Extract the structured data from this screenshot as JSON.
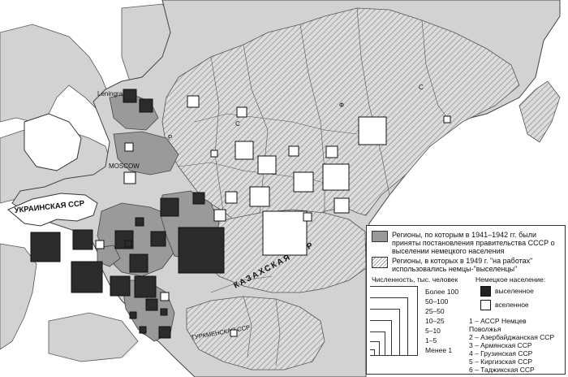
{
  "map_labels": {
    "leningrad": "Leningrad",
    "moscow": "MOSCOW",
    "ukraine": "УКРАИНСКАЯ ССР",
    "kazakh": "КАЗАХСКАЯ ССР",
    "turkmen": "ТУРКМЕНСКАЯ ССР",
    "region_s1": "С",
    "region_s2": "С",
    "region_f": "Ф",
    "region_r": "Р"
  },
  "legend": {
    "deportation_regions": "Регионы, по которым в 1941–1942 гг. были приняты постановления правительства СССР о выселении немецкого населения",
    "labour_regions": "Регионы, в которых в 1949 г. \"на работах\" использовались немцы-\"выселенцы\"",
    "population_heading": "Численность, тыс. человек",
    "german_population_heading": "Немецкое население:",
    "expelled": "выселенное",
    "resettled": "вселенное",
    "size_classes": [
      "Более 100",
      "50–100",
      "25–50",
      "10–25",
      "5–10",
      "1–5",
      "Менее 1"
    ],
    "republics": [
      "1 – АССР Немцев Поволжья",
      "2 – Азербайджанская ССР",
      "3 – Армянская ССР",
      "4 – Грузинская ССР",
      "5 – Киргизская ССР",
      "6 – Таджикская ССР"
    ]
  },
  "colors": {
    "background": "#ffffff",
    "territory": "#d2d2d2",
    "deportation_fill": "#9a9a9a",
    "hatch_line": "#8a8a8a",
    "expelled_square": "#222222",
    "resettled_square": "#ffffff"
  }
}
